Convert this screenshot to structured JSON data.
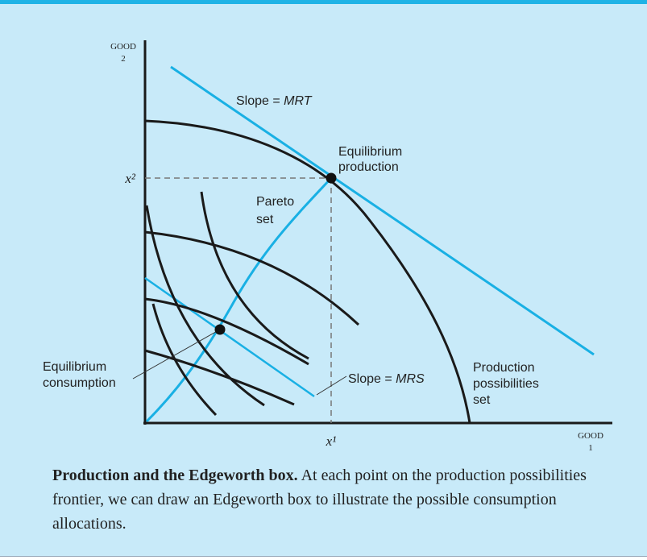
{
  "axes": {
    "y_label": [
      "GOOD",
      "2"
    ],
    "x_label": [
      "GOOD",
      "1"
    ],
    "y_tick": "x²",
    "x_tick": "x¹"
  },
  "labels": {
    "mrt": {
      "prefix": "Slope = ",
      "emph": "MRT"
    },
    "production": [
      "Equilibrium",
      "production"
    ],
    "pareto": [
      "Pareto",
      "set"
    ],
    "consumption": [
      "Equilibrium",
      "consumption"
    ],
    "mrs": {
      "prefix": "Slope = ",
      "emph": "MRS"
    },
    "pps": [
      "Production",
      "possibilities",
      "set"
    ]
  },
  "caption": {
    "title": "Production and the Edgeworth box.",
    "text": " At each point on the production possibilities frontier, we can draw an Edgeworth box to illustrate the possible consumption allocations."
  }
}
